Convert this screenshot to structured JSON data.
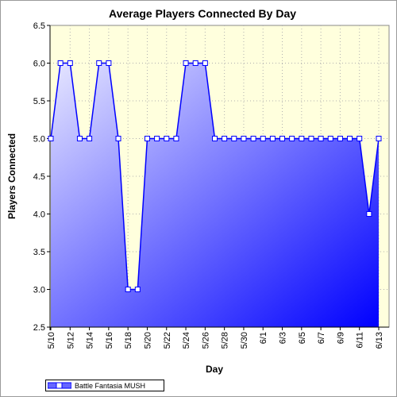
{
  "chart_data": {
    "type": "area",
    "title": "Average Players Connected By Day",
    "xlabel": "Day",
    "ylabel": "Players Connected",
    "x": [
      "5/10",
      "5/11",
      "5/12",
      "5/13",
      "5/14",
      "5/15",
      "5/16",
      "5/17",
      "5/18",
      "5/19",
      "5/20",
      "5/21",
      "5/22",
      "5/23",
      "5/24",
      "5/25",
      "5/26",
      "5/27",
      "5/28",
      "5/29",
      "5/30",
      "5/31",
      "6/1",
      "6/2",
      "6/3",
      "6/4",
      "6/5",
      "6/6",
      "6/7",
      "6/8",
      "6/9",
      "6/10",
      "6/11",
      "6/12",
      "6/13"
    ],
    "xtick_labels": [
      "5/10",
      "5/12",
      "5/14",
      "5/16",
      "5/18",
      "5/20",
      "5/22",
      "5/24",
      "5/26",
      "5/28",
      "5/30",
      "6/1",
      "6/3",
      "6/5",
      "6/7",
      "6/9",
      "6/11",
      "6/13"
    ],
    "series": [
      {
        "name": "Battle Fantasia MUSH",
        "values": [
          5.0,
          6.0,
          6.0,
          5.0,
          5.0,
          6.0,
          6.0,
          5.0,
          3.0,
          3.0,
          5.0,
          5.0,
          5.0,
          5.0,
          6.0,
          6.0,
          6.0,
          5.0,
          5.0,
          5.0,
          5.0,
          5.0,
          5.0,
          5.0,
          5.0,
          5.0,
          5.0,
          5.0,
          5.0,
          5.0,
          5.0,
          5.0,
          5.0,
          4.0,
          5.0
        ]
      }
    ],
    "ylim": [
      2.5,
      6.5
    ],
    "yticks": [
      2.5,
      3.0,
      3.5,
      4.0,
      4.5,
      5.0,
      5.5,
      6.0,
      6.5
    ],
    "ytick_labels": [
      "2.5",
      "3.0",
      "3.5",
      "4.0",
      "4.5",
      "5.0",
      "5.5",
      "6.0",
      "6.5"
    ],
    "grid": true,
    "legend_position": "bottom-left",
    "colors": {
      "plot_background": "#ffffdd",
      "line": "#0000ff",
      "fill_light": "#e6e6ff",
      "fill_dark": "#0000ff",
      "marker_fill": "#ffffff"
    }
  }
}
